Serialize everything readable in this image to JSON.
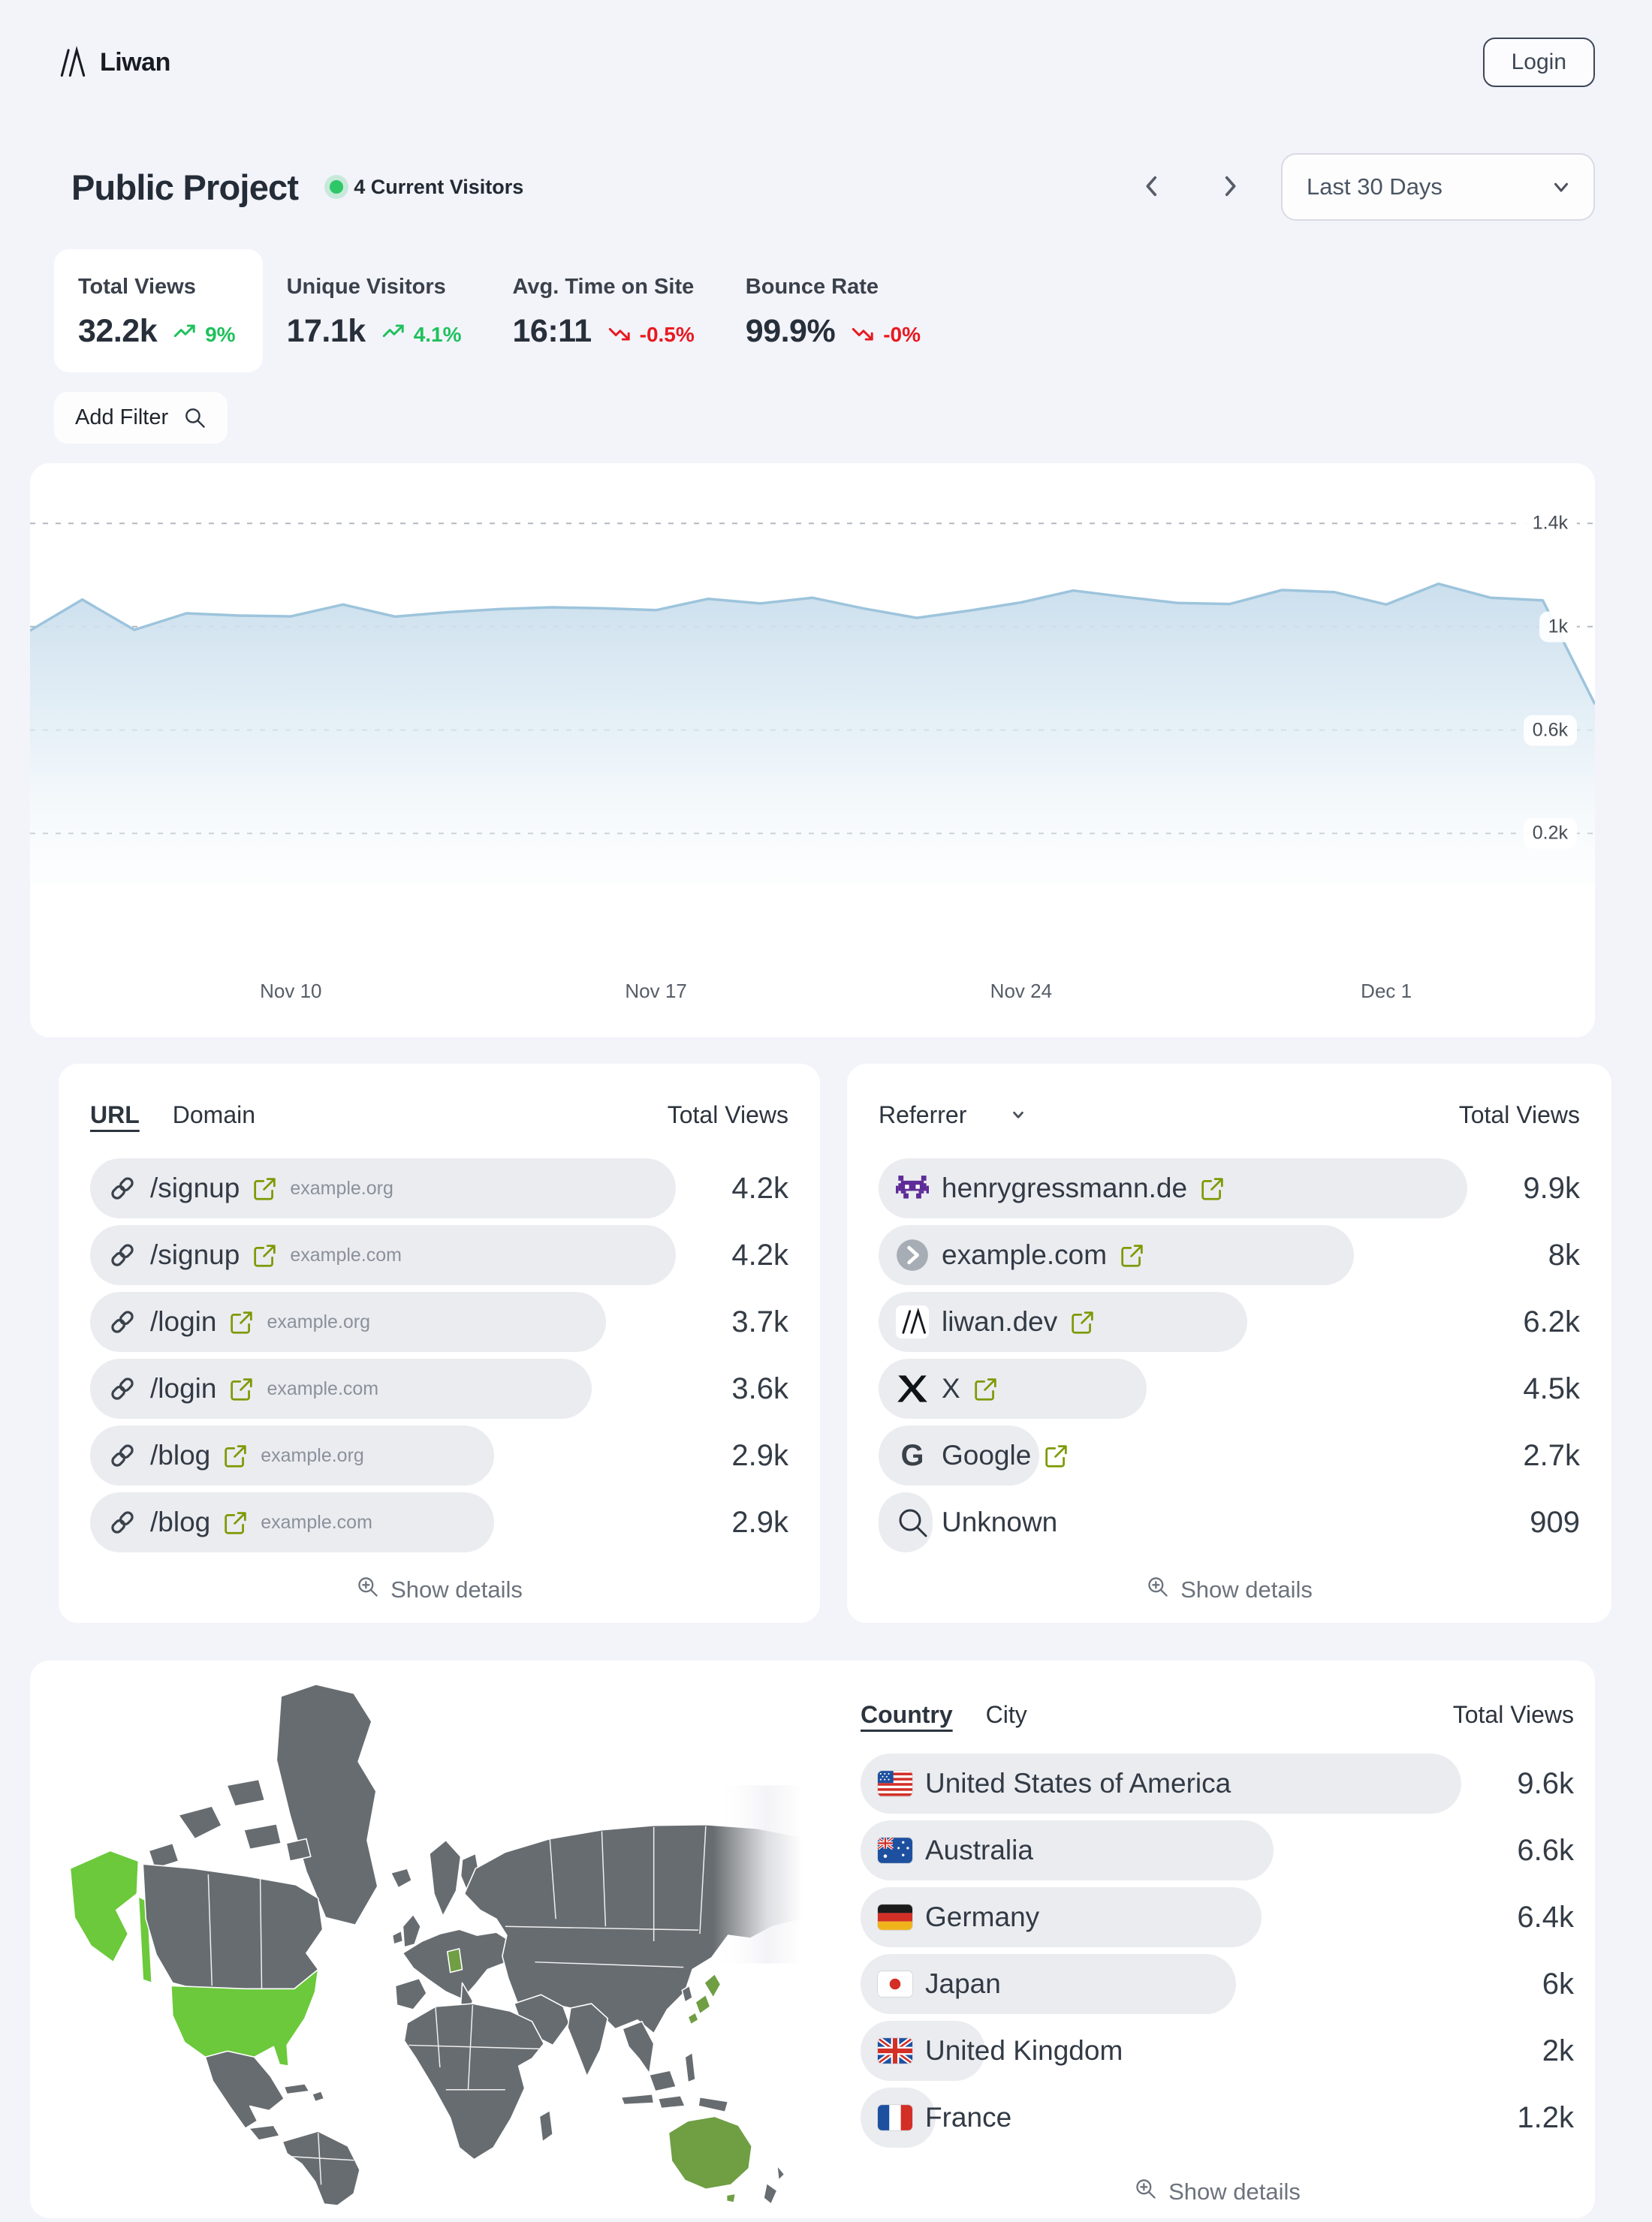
{
  "header": {
    "logo_text": "Liwan",
    "login_label": "Login"
  },
  "toolbar": {
    "project_title": "Public Project",
    "current_visitors": "4 Current Visitors",
    "date_range": "Last 30 Days",
    "add_filter_label": "Add Filter"
  },
  "stats": [
    {
      "label": "Total Views",
      "value": "32.2k",
      "delta": "9%",
      "trend": "up",
      "active": true
    },
    {
      "label": "Unique Visitors",
      "value": "17.1k",
      "delta": "4.1%",
      "trend": "up",
      "active": false
    },
    {
      "label": "Avg. Time on Site",
      "value": "16:11",
      "delta": "-0.5%",
      "trend": "down",
      "active": false
    },
    {
      "label": "Bounce Rate",
      "value": "99.9%",
      "delta": "-0%",
      "trend": "down",
      "active": false
    }
  ],
  "chart_data": {
    "type": "area",
    "series_name": "Total Views",
    "x_unit": "day",
    "values": [
      985,
      1105,
      988,
      1052,
      1043,
      1040,
      1086,
      1039,
      1056,
      1068,
      1075,
      1071,
      1064,
      1108,
      1090,
      1112,
      1070,
      1034,
      1062,
      1094,
      1140,
      1115,
      1092,
      1088,
      1142,
      1134,
      1086,
      1166,
      1112,
      1102,
      700
    ],
    "ylim": [
      0,
      1633
    ],
    "yticks": [
      {
        "label": "1.4k",
        "value": 1400
      },
      {
        "label": "1k",
        "value": 1000
      },
      {
        "label": "0.6k",
        "value": 600
      },
      {
        "label": "0.2k",
        "value": 200
      }
    ],
    "xticks": [
      {
        "label": "Nov 10",
        "index": 5
      },
      {
        "label": "Nov 17",
        "index": 12
      },
      {
        "label": "Nov 24",
        "index": 19
      },
      {
        "label": "Dec 1",
        "index": 26
      }
    ],
    "grid": "dashed-horizontal",
    "legend": "none"
  },
  "url_panel": {
    "tabs": [
      {
        "label": "URL",
        "active": true
      },
      {
        "label": "Domain",
        "active": false
      }
    ],
    "value_header": "Total Views",
    "show_details_label": "Show details",
    "max": 4200,
    "rows": [
      {
        "path": "/signup",
        "domain": "example.org",
        "value": "4.2k",
        "num": 4200
      },
      {
        "path": "/signup",
        "domain": "example.com",
        "value": "4.2k",
        "num": 4200
      },
      {
        "path": "/login",
        "domain": "example.org",
        "value": "3.7k",
        "num": 3700
      },
      {
        "path": "/login",
        "domain": "example.com",
        "value": "3.6k",
        "num": 3600
      },
      {
        "path": "/blog",
        "domain": "example.org",
        "value": "2.9k",
        "num": 2900
      },
      {
        "path": "/blog",
        "domain": "example.com",
        "value": "2.9k",
        "num": 2900
      }
    ]
  },
  "referrer_panel": {
    "header": "Referrer",
    "value_header": "Total Views",
    "show_details_label": "Show details",
    "max": 9900,
    "rows": [
      {
        "name": "henrygressmann.de",
        "icon": "space-invader-favicon",
        "external": true,
        "value": "9.9k",
        "num": 9900
      },
      {
        "name": "example.com",
        "icon": "arrow-circle-favicon",
        "external": true,
        "value": "8k",
        "num": 8000
      },
      {
        "name": "liwan.dev",
        "icon": "liwan-favicon",
        "external": true,
        "value": "6.2k",
        "num": 6200
      },
      {
        "name": "X",
        "icon": "x-favicon",
        "external": true,
        "value": "4.5k",
        "num": 4500
      },
      {
        "name": "Google",
        "icon": "google-favicon",
        "external": true,
        "value": "2.7k",
        "num": 2700
      },
      {
        "name": "Unknown",
        "icon": "search-icon",
        "external": false,
        "value": "909",
        "num": 909
      }
    ]
  },
  "geo_panel": {
    "tabs": [
      {
        "label": "Country",
        "active": true
      },
      {
        "label": "City",
        "active": false
      }
    ],
    "value_header": "Total Views",
    "show_details_label": "Show details",
    "max": 9600,
    "rows": [
      {
        "name": "United States of America",
        "flag": "flag-us",
        "value": "9.6k",
        "num": 9600
      },
      {
        "name": "Australia",
        "flag": "flag-au",
        "value": "6.6k",
        "num": 6600
      },
      {
        "name": "Germany",
        "flag": "flag-de",
        "value": "6.4k",
        "num": 6400
      },
      {
        "name": "Japan",
        "flag": "flag-jp",
        "value": "6k",
        "num": 6000
      },
      {
        "name": "United Kingdom",
        "flag": "flag-gb",
        "value": "2k",
        "num": 2000
      },
      {
        "name": "France",
        "flag": "flag-fr",
        "value": "1.2k",
        "num": 1200
      }
    ]
  },
  "map": {
    "highlight_bright": [
      "United States of America"
    ],
    "highlight_mid": [
      "Australia",
      "Germany",
      "Japan"
    ]
  },
  "colors": {
    "page_bg": "#f3f3fa",
    "card_bg": "#ffffff",
    "pill_bg": "#ebecf0",
    "text_dark": "#2e3640",
    "text_gray": "#757c85",
    "accent_green": "#1fc15c",
    "accent_red": "#e8191f",
    "link_green": "#7c9a03",
    "chart_line": "#9dc4dc",
    "map_gray": "#676c70",
    "map_green_bright": "#6bc93b",
    "map_green_mid": "#6f9e43",
    "live_dot": "#2ec767"
  }
}
